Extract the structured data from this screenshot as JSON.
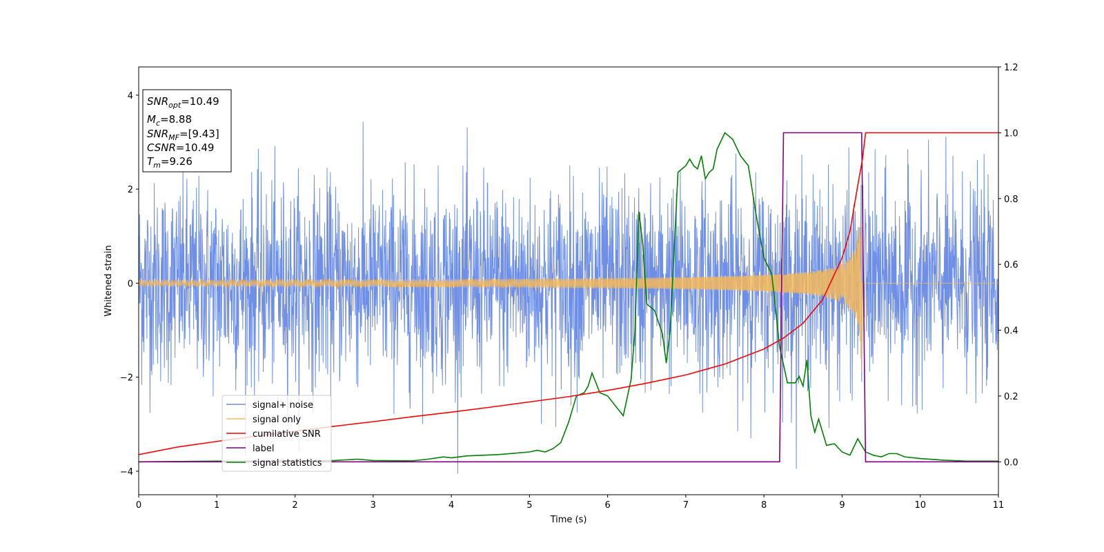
{
  "chart_data": {
    "type": "line",
    "xlabel": "Time (s)",
    "ylabel": "Whitened strain",
    "xlim": [
      0,
      11
    ],
    "ylim_left": [
      -4.5,
      4.6
    ],
    "ylim_right": [
      -0.1,
      1.2
    ],
    "grid": false,
    "legend_placement": "lower-left",
    "x_ticks": [
      "0",
      "1",
      "2",
      "3",
      "4",
      "5",
      "6",
      "7",
      "8",
      "9",
      "10",
      "11"
    ],
    "y_ticks_left": [
      "−4",
      "−2",
      "0",
      "2",
      "4"
    ],
    "y_ticks_right": [
      "0.0",
      "0.2",
      "0.4",
      "0.6",
      "0.8",
      "1.0",
      "1.2"
    ],
    "info_box": [
      {
        "base": "SNR",
        "sub": "opt",
        "value": "=10.49"
      },
      {
        "base": "M",
        "sub": "c",
        "value": "=8.88"
      },
      {
        "base": "SNR",
        "sub": "MF",
        "value": "=[9.43]"
      },
      {
        "base": "CSNR",
        "sub": "",
        "value": "=10.49"
      },
      {
        "base": "T",
        "sub": "m",
        "value": "=9.26"
      }
    ],
    "series": [
      {
        "name": "signal+ noise",
        "color": "#6f8fe6",
        "axis": "left",
        "description_values": {
          "noise_std": 1.0,
          "sample_rate_hz": 256
        }
      },
      {
        "name": "signal only",
        "color": "#f5b95a",
        "axis": "left",
        "chirp_merger_time": 9.26,
        "chirp_peak_amplitude": 1.9
      },
      {
        "name": "cumilative SNR",
        "color": "#ff0000",
        "axis": "right",
        "x": [
          0,
          0.5,
          1,
          1.5,
          2,
          2.5,
          3,
          3.5,
          4,
          4.5,
          5,
          5.5,
          6,
          6.5,
          7,
          7.5,
          8,
          8.25,
          8.5,
          8.75,
          9,
          9.1,
          9.2,
          9.26,
          9.3,
          11
        ],
        "y": [
          0.022,
          0.045,
          0.062,
          0.078,
          0.093,
          0.108,
          0.122,
          0.137,
          0.151,
          0.166,
          0.182,
          0.198,
          0.217,
          0.239,
          0.264,
          0.297,
          0.343,
          0.376,
          0.421,
          0.493,
          0.62,
          0.7,
          0.84,
          0.92,
          1.0,
          1.0
        ]
      },
      {
        "name": "label",
        "color": "#800080",
        "axis": "right",
        "x": [
          0,
          8.2,
          8.25,
          9.25,
          9.3,
          11
        ],
        "y": [
          0,
          0,
          1,
          1,
          0,
          0
        ]
      },
      {
        "name": "signal statistics",
        "color": "#008000",
        "axis": "right",
        "x": [
          0,
          0.5,
          1,
          1.5,
          2,
          2.5,
          2.8,
          3,
          3.5,
          3.7,
          3.9,
          4,
          4.2,
          4.4,
          4.6,
          4.8,
          5,
          5.1,
          5.2,
          5.3,
          5.4,
          5.5,
          5.6,
          5.7,
          5.75,
          5.8,
          5.85,
          5.9,
          6,
          6.1,
          6.2,
          6.3,
          6.35,
          6.4,
          6.45,
          6.5,
          6.6,
          6.7,
          6.75,
          6.8,
          6.9,
          7,
          7.05,
          7.1,
          7.15,
          7.2,
          7.25,
          7.3,
          7.35,
          7.4,
          7.5,
          7.6,
          7.7,
          7.8,
          7.9,
          8,
          8.1,
          8.2,
          8.3,
          8.4,
          8.45,
          8.5,
          8.55,
          8.6,
          8.65,
          8.7,
          8.8,
          8.9,
          9,
          9.1,
          9.2,
          9.3,
          9.4,
          9.5,
          9.6,
          9.7,
          9.8,
          10,
          10.3,
          10.6,
          11
        ],
        "y": [
          0,
          0.001,
          0.002,
          0.002,
          0.003,
          0.004,
          0.008,
          0.004,
          0.003,
          0.008,
          0.015,
          0.012,
          0.018,
          0.02,
          0.022,
          0.026,
          0.03,
          0.035,
          0.03,
          0.04,
          0.058,
          0.12,
          0.2,
          0.21,
          0.23,
          0.27,
          0.24,
          0.21,
          0.2,
          0.17,
          0.14,
          0.25,
          0.4,
          0.76,
          0.66,
          0.48,
          0.46,
          0.39,
          0.3,
          0.4,
          0.88,
          0.9,
          0.92,
          0.9,
          0.89,
          0.93,
          0.86,
          0.88,
          0.89,
          0.95,
          1.0,
          0.98,
          0.93,
          0.9,
          0.75,
          0.62,
          0.57,
          0.35,
          0.24,
          0.24,
          0.26,
          0.23,
          0.31,
          0.14,
          0.09,
          0.13,
          0.05,
          0.055,
          0.03,
          0.02,
          0.07,
          0.03,
          0.02,
          0.015,
          0.025,
          0.025,
          0.015,
          0.01,
          0.005,
          0.002,
          0.002
        ]
      }
    ]
  }
}
